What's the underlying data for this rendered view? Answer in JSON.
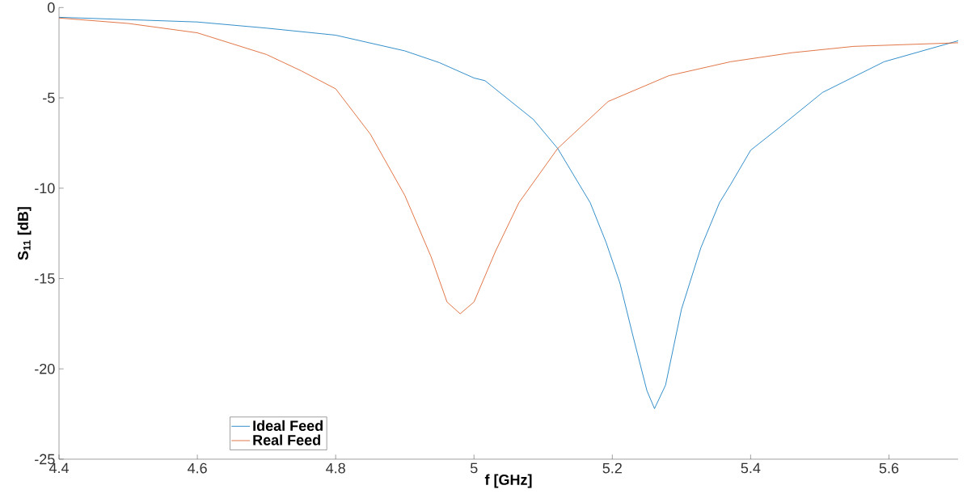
{
  "chart_data": {
    "type": "line",
    "xlabel": "f [GHz]",
    "ylabel": "S$_{11}$ [dB]",
    "xlim": [
      4.4,
      5.7
    ],
    "ylim": [
      -25,
      0
    ],
    "xticks": [
      4.4,
      4.6,
      4.8,
      5,
      5.2,
      5.4,
      5.6
    ],
    "yticks": [
      -25,
      -20,
      -15,
      -10,
      -5,
      0
    ],
    "legend": "bottom left",
    "grid": false,
    "series": [
      {
        "name": "Ideal Feed",
        "color": "#0072bd",
        "x": [
          4.4,
          4.5,
          4.6,
          4.7,
          4.8,
          4.9,
          4.95,
          5.0,
          5.016,
          5.086,
          5.121,
          5.168,
          5.191,
          5.211,
          5.23,
          5.25,
          5.261,
          5.277,
          5.3,
          5.328,
          5.355,
          5.371,
          5.4,
          5.438,
          5.504,
          5.593,
          5.7
        ],
        "values": [
          -0.54,
          -0.67,
          -0.8,
          -1.14,
          -1.53,
          -2.4,
          -3.05,
          -3.9,
          -4.05,
          -6.2,
          -7.8,
          -10.8,
          -13.0,
          -15.25,
          -18.2,
          -21.2,
          -22.2,
          -20.9,
          -16.7,
          -13.3,
          -10.8,
          -9.8,
          -7.9,
          -6.75,
          -4.7,
          -3.0,
          -1.84
        ]
      },
      {
        "name": "Real Feed",
        "color": "#d95319",
        "x": [
          4.4,
          4.5,
          4.6,
          4.7,
          4.75,
          4.8,
          4.85,
          4.9,
          4.938,
          4.961,
          4.98,
          5.0,
          5.031,
          5.065,
          5.121,
          5.194,
          5.282,
          5.371,
          5.46,
          5.549,
          5.7
        ],
        "values": [
          -0.58,
          -0.88,
          -1.4,
          -2.6,
          -3.5,
          -4.5,
          -7.0,
          -10.4,
          -13.8,
          -16.3,
          -16.95,
          -16.3,
          -13.5,
          -10.8,
          -7.8,
          -5.2,
          -3.77,
          -3.0,
          -2.5,
          -2.15,
          -1.95
        ]
      }
    ]
  }
}
